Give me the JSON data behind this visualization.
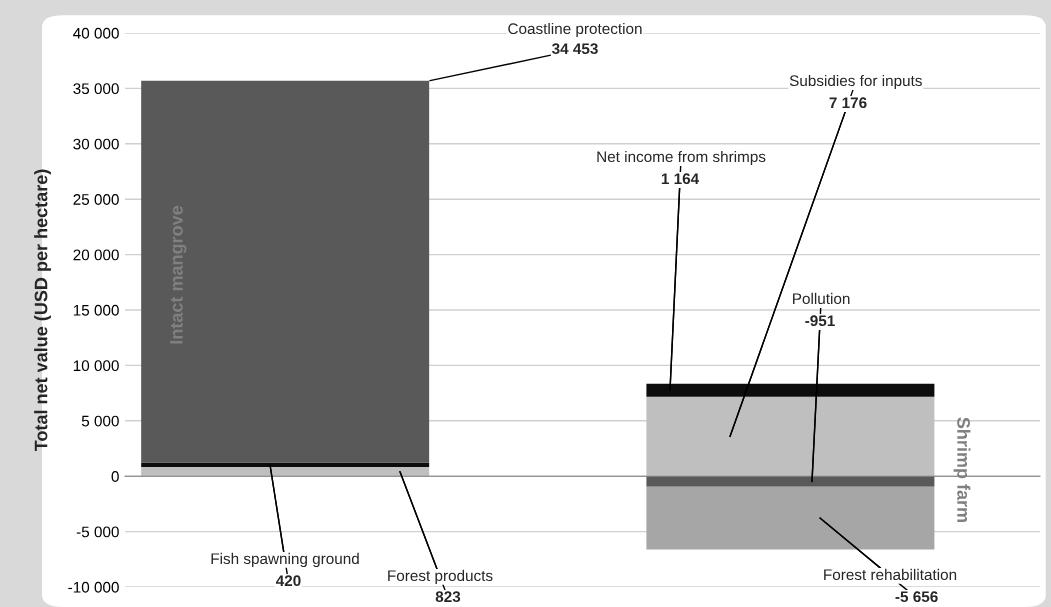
{
  "chart_data": {
    "type": "bar",
    "stacked": true,
    "ylabel": "Total net value (USD per hectare)",
    "categories": [
      "Intact mangrove",
      "Shrimp farm"
    ],
    "series": [
      {
        "name": "Forest products",
        "color": "#bfbfbf",
        "values": [
          823,
          null
        ],
        "value_labels": [
          "823",
          null
        ]
      },
      {
        "name": "Fish spawning ground",
        "color": "#0d0d0d",
        "values": [
          420,
          null
        ],
        "value_labels": [
          "420",
          null
        ]
      },
      {
        "name": "Coastline protection",
        "color": "#595959",
        "values": [
          34453,
          null
        ],
        "value_labels": [
          "34 453",
          null
        ]
      },
      {
        "name": "Subsidies for inputs",
        "color": "#bfbfbf",
        "values": [
          null,
          7176
        ],
        "value_labels": [
          null,
          "7 176"
        ]
      },
      {
        "name": "Net income from shrimps",
        "color": "#0d0d0d",
        "values": [
          null,
          1164
        ],
        "value_labels": [
          null,
          "1 164"
        ]
      },
      {
        "name": "Pollution",
        "color": "#595959",
        "values": [
          null,
          -951
        ],
        "value_labels": [
          null,
          "-951"
        ]
      },
      {
        "name": "Forest rehabilitation",
        "color": "#a6a6a6",
        "values": [
          null,
          -5656
        ],
        "value_labels": [
          null,
          "-5 656"
        ]
      }
    ],
    "ylim": [
      -10000,
      40000
    ],
    "yticks": [
      {
        "value": -10000,
        "label": "-10 000"
      },
      {
        "value": -5000,
        "label": "-5 000"
      },
      0,
      {
        "value": 5000,
        "label": "5 000"
      },
      {
        "value": 10000,
        "label": "10 000"
      },
      {
        "value": 15000,
        "label": "15 000"
      },
      {
        "value": 20000,
        "label": "20 000"
      },
      {
        "value": 25000,
        "label": "25 000"
      },
      {
        "value": 30000,
        "label": "30 000"
      },
      {
        "value": 35000,
        "label": "35 000"
      },
      {
        "value": 40000,
        "label": "40 000"
      }
    ],
    "grid": "y",
    "legend": false
  }
}
